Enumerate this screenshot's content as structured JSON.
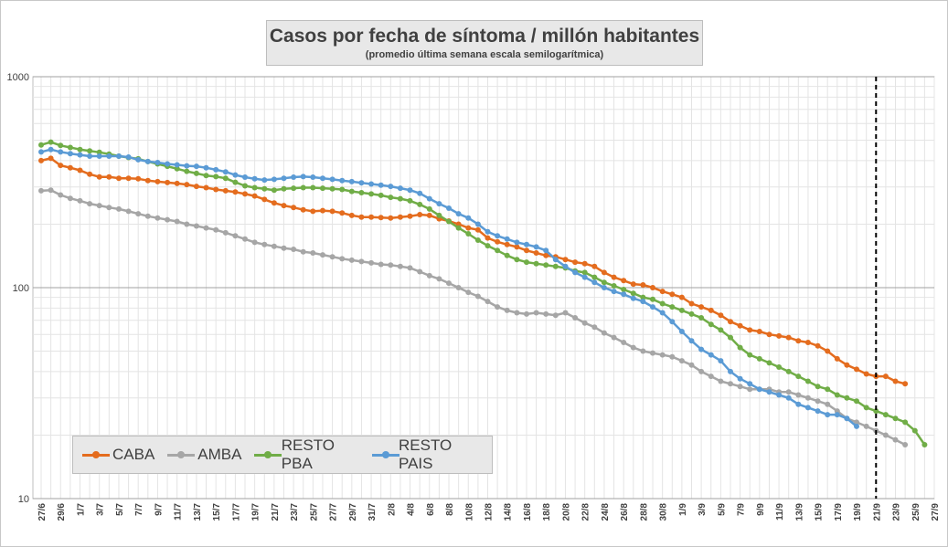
{
  "chart_data": {
    "type": "line",
    "title": "Casos por fecha de síntoma / millón habitantes",
    "subtitle": "(promedio última semana escala semilogarítmica)",
    "yscale": "log",
    "ylim": [
      10,
      1000
    ],
    "y_ticks": [
      "1000",
      "100",
      "10"
    ],
    "x_start": "27/6",
    "x_tick_labels": [
      "27/6",
      "29/6",
      "1/7",
      "3/7",
      "5/7",
      "7/7",
      "9/7",
      "11/7",
      "13/7",
      "15/7",
      "17/7",
      "19/7",
      "21/7",
      "23/7",
      "25/7",
      "27/7",
      "29/7",
      "31/7",
      "2/8",
      "4/8",
      "6/8",
      "8/8",
      "10/8",
      "12/8",
      "14/8",
      "16/8",
      "18/8",
      "20/8",
      "22/8",
      "24/8",
      "26/8",
      "28/8",
      "30/8",
      "1/9",
      "3/9",
      "5/9",
      "7/9",
      "9/9",
      "11/9",
      "13/9",
      "15/9",
      "17/9",
      "19/9",
      "21/9",
      "23/9",
      "25/9",
      "27/9"
    ],
    "vertical_marker": "21/9",
    "grid": true,
    "legend_position": "bottom-left",
    "series": [
      {
        "name": "CABA",
        "color": "#e46c1e",
        "values": [
          400,
          410,
          380,
          370,
          360,
          345,
          335,
          335,
          330,
          330,
          328,
          322,
          318,
          315,
          312,
          308,
          302,
          298,
          292,
          288,
          284,
          278,
          272,
          262,
          252,
          245,
          240,
          234,
          230,
          232,
          230,
          226,
          220,
          216,
          216,
          215,
          214,
          216,
          218,
          222,
          220,
          212,
          207,
          200,
          192,
          188,
          172,
          165,
          160,
          156,
          150,
          146,
          142,
          140,
          136,
          132,
          130,
          126,
          118,
          112,
          108,
          104,
          103,
          100,
          96,
          93,
          90,
          84,
          81,
          78,
          74,
          69,
          66,
          63,
          62,
          60,
          59,
          58,
          56,
          55,
          53,
          50,
          46,
          43,
          41,
          39,
          38,
          38,
          36,
          35
        ]
      },
      {
        "name": "AMBA",
        "color": "#a6a6a6",
        "values": [
          288,
          290,
          275,
          265,
          258,
          250,
          245,
          240,
          236,
          230,
          224,
          218,
          214,
          210,
          206,
          200,
          196,
          192,
          188,
          182,
          176,
          170,
          164,
          160,
          157,
          154,
          152,
          148,
          146,
          143,
          140,
          137,
          135,
          133,
          131,
          129,
          128,
          126,
          124,
          119,
          114,
          110,
          105,
          100,
          95,
          91,
          86,
          81,
          78,
          76,
          75,
          76,
          75,
          74,
          76,
          72,
          68,
          65,
          61,
          58,
          55,
          52,
          50,
          49,
          48,
          47,
          45,
          43,
          40,
          38,
          36,
          35,
          34,
          33,
          33,
          33,
          32,
          32,
          31,
          30,
          29,
          28,
          26,
          24,
          23,
          22,
          21,
          20,
          19,
          18
        ]
      },
      {
        "name": "RESTO PBA",
        "color": "#70ad47",
        "values": [
          475,
          490,
          472,
          462,
          452,
          445,
          438,
          430,
          420,
          414,
          408,
          396,
          386,
          376,
          366,
          356,
          348,
          340,
          336,
          330,
          316,
          304,
          298,
          294,
          290,
          294,
          296,
          298,
          298,
          296,
          294,
          292,
          286,
          282,
          278,
          274,
          268,
          264,
          258,
          248,
          236,
          220,
          206,
          192,
          180,
          168,
          158,
          150,
          142,
          136,
          132,
          130,
          128,
          126,
          124,
          120,
          118,
          112,
          106,
          102,
          98,
          94,
          90,
          88,
          84,
          81,
          78,
          75,
          72,
          67,
          63,
          58,
          52,
          48,
          46,
          44,
          42,
          40,
          38,
          36,
          34,
          33,
          31,
          30,
          29,
          27,
          26,
          25,
          24,
          23,
          21,
          18
        ]
      },
      {
        "name": "RESTO PAIS",
        "color": "#5b9bd5",
        "values": [
          440,
          452,
          440,
          432,
          426,
          420,
          420,
          420,
          420,
          416,
          404,
          396,
          392,
          386,
          382,
          378,
          376,
          370,
          362,
          354,
          342,
          334,
          328,
          324,
          326,
          330,
          334,
          336,
          334,
          330,
          326,
          322,
          318,
          314,
          310,
          306,
          302,
          296,
          290,
          280,
          264,
          250,
          238,
          224,
          214,
          200,
          184,
          176,
          170,
          164,
          160,
          156,
          150,
          136,
          126,
          118,
          112,
          106,
          100,
          96,
          93,
          89,
          86,
          81,
          76,
          69,
          62,
          56,
          51,
          48,
          45,
          40,
          37,
          35,
          33,
          32,
          31,
          30,
          28,
          27,
          26,
          25,
          25,
          24,
          22
        ]
      }
    ]
  }
}
